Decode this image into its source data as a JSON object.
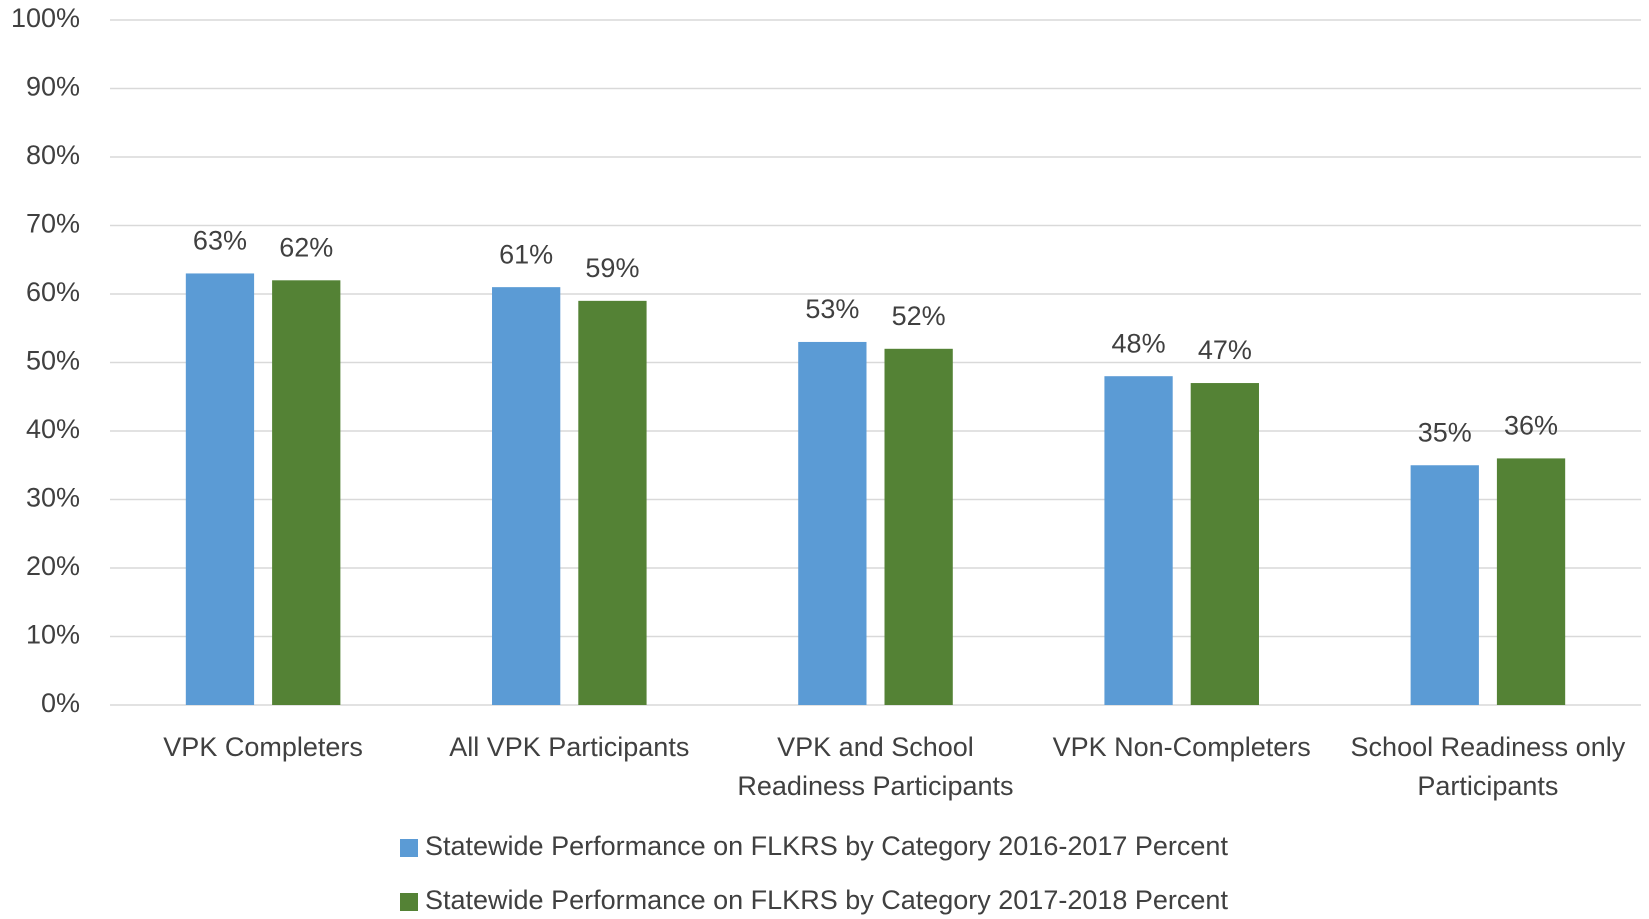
{
  "chart_data": {
    "type": "bar",
    "categories": [
      "VPK Completers",
      "All VPK Participants",
      "VPK and School Readiness Participants",
      "VPK Non-Completers",
      "School Readiness only Participants"
    ],
    "series": [
      {
        "name": "Statewide Performance on FLKRS by Category 2016-2017 Percent",
        "color": "#5b9bd5",
        "values": [
          63,
          61,
          53,
          48,
          35
        ],
        "value_labels": [
          "63%",
          "61%",
          "53%",
          "48%",
          "35%"
        ]
      },
      {
        "name": "Statewide Performance on FLKRS by Category 2017-2018 Percent",
        "color": "#548235",
        "values": [
          62,
          59,
          52,
          47,
          36
        ],
        "value_labels": [
          "62%",
          "59%",
          "52%",
          "47%",
          "36%"
        ]
      }
    ],
    "ylim": [
      0,
      100
    ],
    "yticks": [
      {
        "value": 0,
        "label": "0%"
      },
      {
        "value": 10,
        "label": "10%"
      },
      {
        "value": 20,
        "label": "20%"
      },
      {
        "value": 30,
        "label": "30%"
      },
      {
        "value": 40,
        "label": "40%"
      },
      {
        "value": 50,
        "label": "50%"
      },
      {
        "value": 60,
        "label": "60%"
      },
      {
        "value": 70,
        "label": "70%"
      },
      {
        "value": 80,
        "label": "80%"
      },
      {
        "value": 90,
        "label": "90%"
      },
      {
        "value": 100,
        "label": "100%"
      }
    ],
    "grid": true,
    "legend": "bottom"
  }
}
